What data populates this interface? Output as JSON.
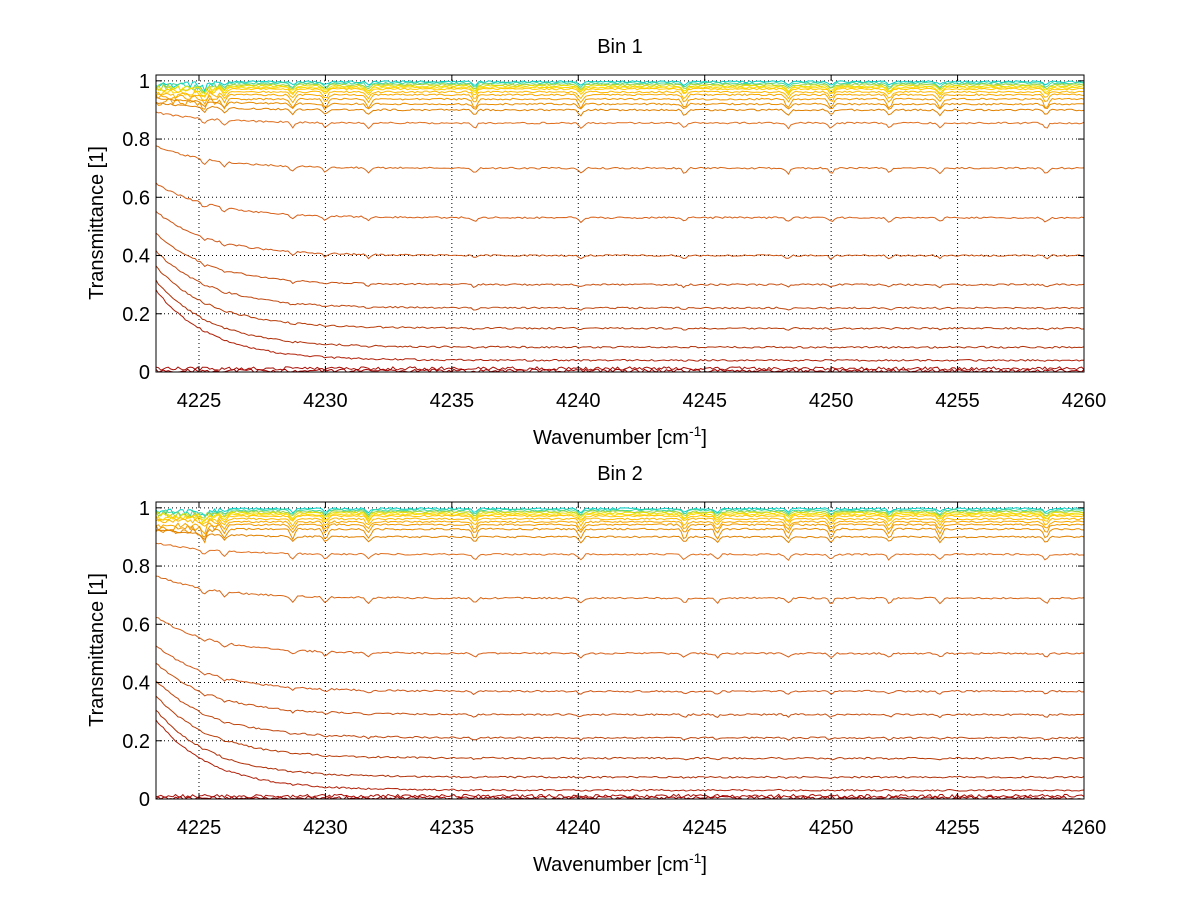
{
  "chart_data": [
    {
      "type": "line",
      "title": "Bin 1",
      "xlabel": "Wavenumber [cm",
      "xlabel_sup": "-1",
      "xlabel_suffix": "]",
      "ylabel": "Transmittance [1]",
      "xlim": [
        4223.3,
        4260
      ],
      "ylim": [
        0,
        1.02
      ],
      "xticks": [
        4225,
        4230,
        4235,
        4240,
        4245,
        4250,
        4255,
        4260
      ],
      "yticks": [
        0,
        0.2,
        0.4,
        0.6,
        0.8,
        1
      ],
      "ytick_labels": [
        "0",
        "0.2",
        "0.4",
        "0.6",
        "0.8",
        "1"
      ],
      "grid": true,
      "series_levels": [
        1.0,
        0.995,
        0.99,
        0.985,
        0.98,
        0.975,
        0.965,
        0.955,
        0.94,
        0.92,
        0.9,
        0.855,
        0.7,
        0.53,
        0.4,
        0.3,
        0.22,
        0.15,
        0.085,
        0.04,
        0.012,
        0.004
      ],
      "series_colors": [
        "#00d0c8",
        "#40d8a0",
        "#9ed040",
        "#e8e000",
        "#ffd800",
        "#ffc800",
        "#ffb800",
        "#f8a800",
        "#f09800",
        "#e88c00",
        "#e08000",
        "#e07020",
        "#d86818",
        "#d86018",
        "#d05818",
        "#c85010",
        "#c04810",
        "#b83c08",
        "#b03008",
        "#b02008",
        "#a81008",
        "#a00000"
      ],
      "absorption_lines": [
        4225.2,
        4226,
        4228.7,
        4230,
        4231.7,
        4235.9,
        4240.1,
        4244.2,
        4248.3,
        4250,
        4252.3,
        4254.3,
        4258.5
      ]
    },
    {
      "type": "line",
      "title": "Bin 2",
      "xlabel": "Wavenumber [cm",
      "xlabel_sup": "-1",
      "xlabel_suffix": "]",
      "ylabel": "Transmittance [1]",
      "xlim": [
        4223.3,
        4260
      ],
      "ylim": [
        0,
        1.02
      ],
      "xticks": [
        4225,
        4230,
        4235,
        4240,
        4245,
        4250,
        4255,
        4260
      ],
      "yticks": [
        0,
        0.2,
        0.4,
        0.6,
        0.8,
        1
      ],
      "ytick_labels": [
        "0",
        "0.2",
        "0.4",
        "0.6",
        "0.8",
        "1"
      ],
      "grid": true,
      "series_levels": [
        1.0,
        0.995,
        0.99,
        0.985,
        0.98,
        0.975,
        0.965,
        0.955,
        0.945,
        0.93,
        0.9,
        0.84,
        0.69,
        0.5,
        0.37,
        0.29,
        0.21,
        0.14,
        0.075,
        0.03,
        0.01,
        0.003
      ],
      "series_colors": [
        "#00d0c8",
        "#40d8a0",
        "#9ed040",
        "#e8e000",
        "#ffd800",
        "#ffc800",
        "#ffb800",
        "#f8a800",
        "#f09800",
        "#e88c00",
        "#e08000",
        "#e07020",
        "#d86818",
        "#d86018",
        "#d05818",
        "#c85010",
        "#c04810",
        "#b83c08",
        "#b03008",
        "#b02008",
        "#a81008",
        "#a00000"
      ],
      "absorption_lines": [
        4225.2,
        4226,
        4228.7,
        4230,
        4231.7,
        4235.9,
        4240.1,
        4244.2,
        4245.5,
        4248.3,
        4250,
        4252.3,
        4254.3,
        4258.5
      ]
    }
  ]
}
